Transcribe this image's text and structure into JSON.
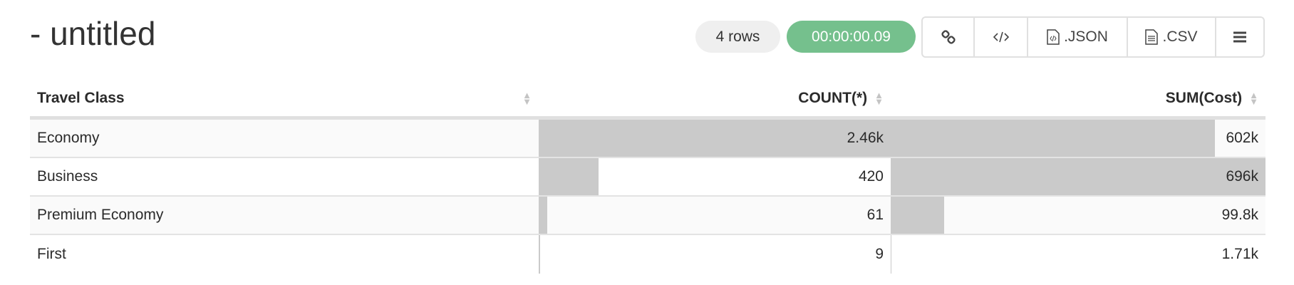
{
  "title": "- untitled",
  "row_count": "4 rows",
  "elapsed": "00:00:00.09",
  "colors": {
    "elapsed_bg": "#75c08d",
    "bar": "#cacaca"
  },
  "toolbar": {
    "link_icon": "link-icon",
    "embed_icon": "code-icon",
    "json_label": ".JSON",
    "csv_label": ".CSV",
    "menu_icon": "hamburger-menu-icon"
  },
  "table": {
    "columns": [
      "Travel Class",
      "COUNT(*)",
      "SUM(Cost)"
    ],
    "rows": [
      {
        "travel_class": "Economy",
        "count": "2.46k",
        "sum": "602k",
        "count_value": 2460,
        "sum_value": 602000
      },
      {
        "travel_class": "Business",
        "count": "420",
        "sum": "696k",
        "count_value": 420,
        "sum_value": 696000
      },
      {
        "travel_class": "Premium Economy",
        "count": "61",
        "sum": "99.8k",
        "count_value": 61,
        "sum_value": 99800
      },
      {
        "travel_class": "First",
        "count": "9",
        "sum": "1.71k",
        "count_value": 9,
        "sum_value": 1710
      }
    ]
  }
}
